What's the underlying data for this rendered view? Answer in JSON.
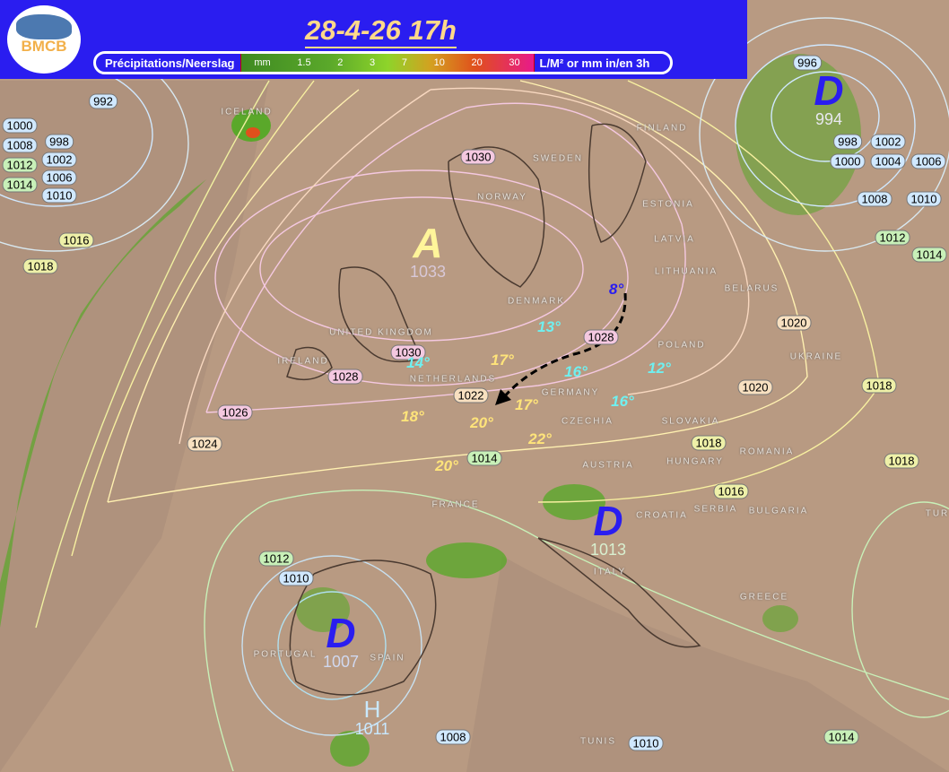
{
  "header": {
    "logo_text": "BMCB",
    "title": "28-4-26  17h",
    "legend": {
      "label": "Précipitations/Neerslag",
      "scale": [
        "mm",
        "1.5",
        "2",
        "3",
        "7",
        "10",
        "20",
        "30"
      ],
      "unit": "L/M² or mm in/en 3h"
    }
  },
  "colors": {
    "header_bg": "#2a1df0",
    "title": "#ffd98a",
    "land": "#b89a82",
    "precip_light": "#5aa82a",
    "precip_heavy": "#e0501c",
    "temp_warm": "#ffe47a",
    "temp_cool": "#6ff0f0",
    "temp_cold": "#2a1df0"
  },
  "pressure_centers": [
    {
      "letter": "A",
      "value": "1033",
      "type": "high"
    },
    {
      "letter": "D",
      "value": "994",
      "type": "low"
    },
    {
      "letter": "D",
      "value": "1013",
      "type": "low"
    },
    {
      "letter": "D",
      "value": "1007",
      "type": "low"
    },
    {
      "letter": "H",
      "value": "1011",
      "type": "high"
    }
  ],
  "isobar_labels": [
    "992",
    "998",
    "1000",
    "1002",
    "1006",
    "1008",
    "1010",
    "1012",
    "1014",
    "1016",
    "1018",
    "1030",
    "1030",
    "1028",
    "1026",
    "1024",
    "1022",
    "1020",
    "1020",
    "1018",
    "1016",
    "1014",
    "1018",
    "1018",
    "1012",
    "1010",
    "1008",
    "1010",
    "1014",
    "996",
    "998",
    "1000",
    "1002",
    "1004",
    "1006",
    "1008",
    "1010",
    "1012",
    "1014",
    "1028"
  ],
  "temperatures": [
    "8°",
    "13°",
    "14°",
    "16°",
    "12°",
    "16°",
    "17°",
    "17°",
    "18°",
    "20°",
    "22°",
    "20°"
  ],
  "countries": [
    "ICELAND",
    "SWEDEN",
    "NORWAY",
    "FINLAND",
    "ESTONIA",
    "LATVIA",
    "LITHUANIA",
    "BELARUS",
    "DENMARK",
    "UNITED KINGDOM",
    "IRELAND",
    "NETHERLANDS",
    "GERMANY",
    "POLAND",
    "UKRAINE",
    "CZECHIA",
    "SLOVAKIA",
    "AUSTRIA",
    "HUNGARY",
    "ROMANIA",
    "FRANCE",
    "CROATIA",
    "SERBIA",
    "BULGARIA",
    "ITALY",
    "GREECE",
    "PORTUGAL",
    "SPAIN",
    "TUNIS",
    "TUR"
  ]
}
